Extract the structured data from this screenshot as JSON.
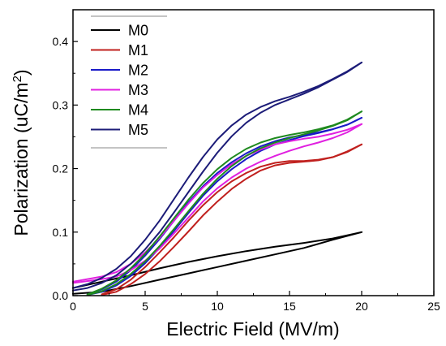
{
  "chart_data": {
    "type": "line",
    "xlabel": "Electric Field (MV/m)",
    "ylabel_main": "Polarization (uC/m",
    "ylabel_sup": "2",
    "ylabel_end": ")",
    "xlim": [
      0,
      25
    ],
    "ylim": [
      0,
      0.45
    ],
    "xticks": [
      0,
      5,
      10,
      15,
      20,
      25
    ],
    "yticks": [
      0.0,
      0.1,
      0.2,
      0.3,
      0.4
    ],
    "xtick_labels": [
      "0",
      "5",
      "10",
      "15",
      "20",
      "25"
    ],
    "ytick_labels": [
      "0.0",
      "0.1",
      "0.2",
      "0.3",
      "0.4"
    ],
    "grid": false,
    "legend_position": "top-left",
    "series": [
      {
        "name": "M0",
        "color": "#000000",
        "upper": [
          [
            0,
            0.012
          ],
          [
            2,
            0.022
          ],
          [
            4,
            0.032
          ],
          [
            6,
            0.043
          ],
          [
            8,
            0.053
          ],
          [
            10,
            0.062
          ],
          [
            12,
            0.07
          ],
          [
            14,
            0.077
          ],
          [
            16,
            0.083
          ],
          [
            18,
            0.09
          ],
          [
            20,
            0.1
          ]
        ],
        "lower": [
          [
            0,
            0.003
          ],
          [
            2,
            0.006
          ],
          [
            4,
            0.015
          ],
          [
            6,
            0.025
          ],
          [
            8,
            0.035
          ],
          [
            10,
            0.045
          ],
          [
            12,
            0.055
          ],
          [
            14,
            0.065
          ],
          [
            16,
            0.075
          ],
          [
            18,
            0.088
          ],
          [
            20,
            0.1
          ]
        ]
      },
      {
        "name": "M1",
        "color": "#c0201e",
        "upper": [
          [
            2,
            0.002
          ],
          [
            3,
            0.01
          ],
          [
            4,
            0.025
          ],
          [
            5,
            0.045
          ],
          [
            6,
            0.068
          ],
          [
            7,
            0.092
          ],
          [
            8,
            0.118
          ],
          [
            9,
            0.142
          ],
          [
            10,
            0.163
          ],
          [
            11,
            0.18
          ],
          [
            12,
            0.193
          ],
          [
            13,
            0.203
          ],
          [
            14,
            0.209
          ],
          [
            15,
            0.212
          ],
          [
            16,
            0.212
          ],
          [
            17,
            0.214
          ],
          [
            18,
            0.218
          ],
          [
            19,
            0.226
          ],
          [
            20,
            0.238
          ]
        ],
        "lower": [
          [
            2,
            0.001
          ],
          [
            3,
            0.006
          ],
          [
            4,
            0.018
          ],
          [
            5,
            0.034
          ],
          [
            6,
            0.054
          ],
          [
            7,
            0.077
          ],
          [
            8,
            0.101
          ],
          [
            9,
            0.126
          ],
          [
            10,
            0.148
          ],
          [
            11,
            0.168
          ],
          [
            12,
            0.184
          ],
          [
            13,
            0.197
          ],
          [
            14,
            0.205
          ],
          [
            15,
            0.209
          ],
          [
            16,
            0.211
          ],
          [
            17,
            0.213
          ],
          [
            18,
            0.218
          ],
          [
            19,
            0.227
          ],
          [
            20,
            0.238
          ]
        ]
      },
      {
        "name": "M2",
        "color": "#1a1ac8",
        "upper": [
          [
            1,
            0.002
          ],
          [
            2,
            0.01
          ],
          [
            3,
            0.022
          ],
          [
            4,
            0.04
          ],
          [
            5,
            0.063
          ],
          [
            6,
            0.089
          ],
          [
            7,
            0.118
          ],
          [
            8,
            0.147
          ],
          [
            9,
            0.172
          ],
          [
            10,
            0.193
          ],
          [
            11,
            0.21
          ],
          [
            12,
            0.224
          ],
          [
            13,
            0.235
          ],
          [
            14,
            0.243
          ],
          [
            15,
            0.249
          ],
          [
            16,
            0.253
          ],
          [
            17,
            0.257
          ],
          [
            18,
            0.262
          ],
          [
            19,
            0.269
          ],
          [
            20,
            0.28
          ]
        ],
        "lower": [
          [
            1,
            0.001
          ],
          [
            2,
            0.006
          ],
          [
            3,
            0.016
          ],
          [
            4,
            0.031
          ],
          [
            5,
            0.051
          ],
          [
            6,
            0.075
          ],
          [
            7,
            0.102
          ],
          [
            8,
            0.13
          ],
          [
            9,
            0.157
          ],
          [
            10,
            0.18
          ],
          [
            11,
            0.199
          ],
          [
            12,
            0.215
          ],
          [
            13,
            0.228
          ],
          [
            14,
            0.238
          ],
          [
            15,
            0.245
          ],
          [
            16,
            0.251
          ],
          [
            17,
            0.256
          ],
          [
            18,
            0.262
          ],
          [
            19,
            0.269
          ],
          [
            20,
            0.28
          ]
        ]
      },
      {
        "name": "M3",
        "color": "#e020e0",
        "upper": [
          [
            0,
            0.022
          ],
          [
            2,
            0.03
          ],
          [
            3,
            0.037
          ],
          [
            4,
            0.05
          ],
          [
            5,
            0.068
          ],
          [
            6,
            0.091
          ],
          [
            7,
            0.118
          ],
          [
            8,
            0.145
          ],
          [
            9,
            0.17
          ],
          [
            10,
            0.19
          ],
          [
            11,
            0.207
          ],
          [
            12,
            0.22
          ],
          [
            13,
            0.23
          ],
          [
            14,
            0.238
          ],
          [
            15,
            0.243
          ],
          [
            16,
            0.247
          ],
          [
            17,
            0.25
          ],
          [
            18,
            0.255
          ],
          [
            19,
            0.261
          ],
          [
            20,
            0.27
          ]
        ],
        "lower": [
          [
            0,
            0.02
          ],
          [
            2,
            0.026
          ],
          [
            3,
            0.03
          ],
          [
            4,
            0.04
          ],
          [
            5,
            0.055
          ],
          [
            6,
            0.074
          ],
          [
            7,
            0.098
          ],
          [
            8,
            0.123
          ],
          [
            9,
            0.148
          ],
          [
            10,
            0.169
          ],
          [
            11,
            0.186
          ],
          [
            12,
            0.2
          ],
          [
            13,
            0.211
          ],
          [
            14,
            0.22
          ],
          [
            15,
            0.228
          ],
          [
            16,
            0.235
          ],
          [
            17,
            0.241
          ],
          [
            18,
            0.248
          ],
          [
            19,
            0.257
          ],
          [
            20,
            0.27
          ]
        ]
      },
      {
        "name": "M4",
        "color": "#1f8a1f",
        "upper": [
          [
            1,
            0.002
          ],
          [
            2,
            0.011
          ],
          [
            3,
            0.024
          ],
          [
            4,
            0.043
          ],
          [
            5,
            0.066
          ],
          [
            6,
            0.093
          ],
          [
            7,
            0.122
          ],
          [
            8,
            0.151
          ],
          [
            9,
            0.177
          ],
          [
            10,
            0.199
          ],
          [
            11,
            0.217
          ],
          [
            12,
            0.231
          ],
          [
            13,
            0.241
          ],
          [
            14,
            0.248
          ],
          [
            15,
            0.253
          ],
          [
            16,
            0.257
          ],
          [
            17,
            0.262
          ],
          [
            18,
            0.268
          ],
          [
            19,
            0.277
          ],
          [
            20,
            0.29
          ]
        ],
        "lower": [
          [
            1,
            0.001
          ],
          [
            2,
            0.007
          ],
          [
            3,
            0.018
          ],
          [
            4,
            0.034
          ],
          [
            5,
            0.054
          ],
          [
            6,
            0.078
          ],
          [
            7,
            0.105
          ],
          [
            8,
            0.133
          ],
          [
            9,
            0.16
          ],
          [
            10,
            0.184
          ],
          [
            11,
            0.204
          ],
          [
            12,
            0.22
          ],
          [
            13,
            0.232
          ],
          [
            14,
            0.241
          ],
          [
            15,
            0.248
          ],
          [
            16,
            0.254
          ],
          [
            17,
            0.26
          ],
          [
            18,
            0.267
          ],
          [
            19,
            0.276
          ],
          [
            20,
            0.29
          ]
        ]
      },
      {
        "name": "M5",
        "color": "#1c1c78",
        "upper": [
          [
            0,
            0.012
          ],
          [
            1,
            0.018
          ],
          [
            2,
            0.028
          ],
          [
            3,
            0.042
          ],
          [
            4,
            0.062
          ],
          [
            5,
            0.088
          ],
          [
            6,
            0.118
          ],
          [
            7,
            0.152
          ],
          [
            8,
            0.186
          ],
          [
            9,
            0.218
          ],
          [
            10,
            0.246
          ],
          [
            11,
            0.268
          ],
          [
            12,
            0.285
          ],
          [
            13,
            0.297
          ],
          [
            14,
            0.306
          ],
          [
            15,
            0.313
          ],
          [
            16,
            0.321
          ],
          [
            17,
            0.33
          ],
          [
            18,
            0.341
          ],
          [
            19,
            0.353
          ],
          [
            20,
            0.367
          ]
        ],
        "lower": [
          [
            0,
            0.008
          ],
          [
            1,
            0.012
          ],
          [
            2,
            0.02
          ],
          [
            3,
            0.032
          ],
          [
            4,
            0.05
          ],
          [
            5,
            0.073
          ],
          [
            6,
            0.1
          ],
          [
            7,
            0.131
          ],
          [
            8,
            0.163
          ],
          [
            9,
            0.195
          ],
          [
            10,
            0.225
          ],
          [
            11,
            0.251
          ],
          [
            12,
            0.272
          ],
          [
            13,
            0.288
          ],
          [
            14,
            0.3
          ],
          [
            15,
            0.309
          ],
          [
            16,
            0.318
          ],
          [
            17,
            0.328
          ],
          [
            18,
            0.34
          ],
          [
            19,
            0.352
          ],
          [
            20,
            0.367
          ]
        ]
      }
    ]
  }
}
